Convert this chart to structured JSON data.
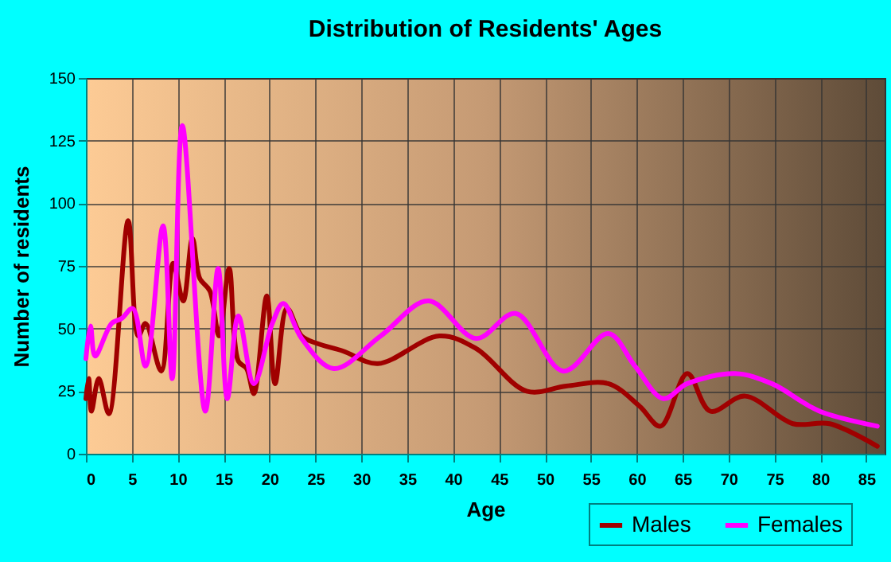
{
  "chart_data": {
    "type": "line",
    "title": "Distribution of Residents' Ages",
    "xlabel": "Age",
    "ylabel": "Number of residents",
    "xlim": [
      0,
      87
    ],
    "xticks": [
      0,
      5,
      10,
      15,
      20,
      25,
      30,
      35,
      40,
      45,
      50,
      55,
      60,
      65,
      70,
      75,
      80,
      85
    ],
    "ylim": [
      0,
      150
    ],
    "yticks": [
      0,
      25,
      50,
      75,
      100,
      125,
      150
    ],
    "grid": true,
    "legend": "bottom right",
    "series": [
      {
        "name": "Males",
        "color": "#a00000",
        "x": [
          0,
          0.3,
          0.6,
          1.4,
          2.5,
          4.6,
          5.7,
          6.5,
          8.2,
          9.5,
          10.6,
          11.6,
          12.4,
          13.5,
          14.5,
          15.6,
          16.6,
          17.5,
          18.3,
          19.7,
          20.6,
          21.9,
          23.5,
          25.2,
          28,
          31.8,
          38.5,
          42.5,
          48,
          52.3,
          56.9,
          60.3,
          62.6,
          65.5,
          68,
          71.8,
          77,
          81,
          86.2
        ],
        "values": [
          22,
          30,
          17,
          30,
          16,
          93,
          47,
          52,
          33,
          76,
          61,
          86,
          70,
          65,
          47,
          74,
          37,
          34,
          24,
          63,
          28,
          58,
          47,
          44,
          41,
          36,
          47,
          42,
          25,
          27,
          28,
          19,
          11,
          32,
          17,
          23,
          12,
          12,
          3
        ]
      },
      {
        "name": "Females",
        "color": "#ff00ff",
        "x": [
          0,
          0.5,
          1,
          2.8,
          3.9,
          5.1,
          6.5,
          8.4,
          9.4,
          10.5,
          13,
          14.4,
          15.4,
          16.6,
          18.3,
          20.3,
          21.5,
          23.5,
          27,
          32.1,
          37.3,
          42.5,
          46.8,
          52,
          56.9,
          59.8,
          62.9,
          65.5,
          70.7,
          74.7,
          79.9,
          86.2
        ],
        "values": [
          38,
          51,
          39,
          52,
          54,
          58,
          35,
          91,
          30,
          131,
          17,
          74,
          22,
          55,
          28,
          52,
          60,
          46,
          34,
          47,
          61,
          46,
          56,
          33,
          48,
          35,
          22,
          28,
          32,
          28,
          17,
          11
        ]
      }
    ]
  }
}
